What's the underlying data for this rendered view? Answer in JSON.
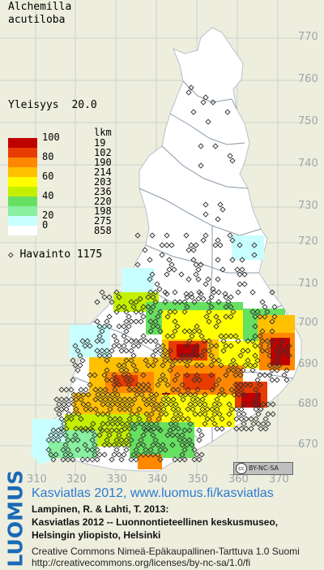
{
  "species": {
    "line1": "Alchemilla",
    "line2": "acutiloba"
  },
  "frequency": {
    "label": "Yleisyys",
    "value": "20.0"
  },
  "legend": {
    "count_header": "lkm",
    "classes": [
      {
        "pct": "100",
        "count": "19",
        "color": "#c00000"
      },
      {
        "pct": "",
        "count": "102",
        "color": "#e83c00"
      },
      {
        "pct": "80",
        "count": "190",
        "color": "#ff8800"
      },
      {
        "pct": "",
        "count": "214",
        "color": "#ffc000"
      },
      {
        "pct": "60",
        "count": "203",
        "color": "#ffff00"
      },
      {
        "pct": "",
        "count": "236",
        "color": "#c4f000"
      },
      {
        "pct": "40",
        "count": "220",
        "color": "#66e060"
      },
      {
        "pct": "",
        "count": "198",
        "color": "#88f0a0"
      },
      {
        "pct": "20",
        "count": "275",
        "color": "#c8ffff"
      },
      {
        "pct": "0",
        "count": "858",
        "color": "#ffffff"
      }
    ],
    "havainto_label": "Havainto",
    "havainto_count": "1175",
    "havainto_symbol": "◇"
  },
  "grid": {
    "y_ticks": [
      "770",
      "760",
      "750",
      "740",
      "730",
      "720",
      "710",
      "700",
      "690",
      "680",
      "670"
    ],
    "x_ticks": [
      "310",
      "320",
      "330",
      "340",
      "350",
      "360",
      "370"
    ]
  },
  "map": {
    "background": "#eeeedf",
    "land_color": "#ffffff",
    "border_color": "#8899aa",
    "marker_color": "#333333"
  },
  "cc_badge": {
    "text": "BY-NC-SA",
    "icon": "cc-icon"
  },
  "credits": {
    "logo_text": "LUOMUS",
    "title": "Kasviatlas 2012, www.luomus.fi/kasviatlas",
    "line1": "Lampinen, R. & Lahti, T. 2013:",
    "line2": "Kasviatlas 2012 -- Luonnontieteellinen keskusmuseo,",
    "line3": "Helsingin yliopisto, Helsinki",
    "license1": "Creative Commons Nimeä-Epäkaupallinen-Tarttuva 1.0 Suomi",
    "license2": "http://creativecommons.org/licenses/by-nc-sa/1.0/fi"
  }
}
